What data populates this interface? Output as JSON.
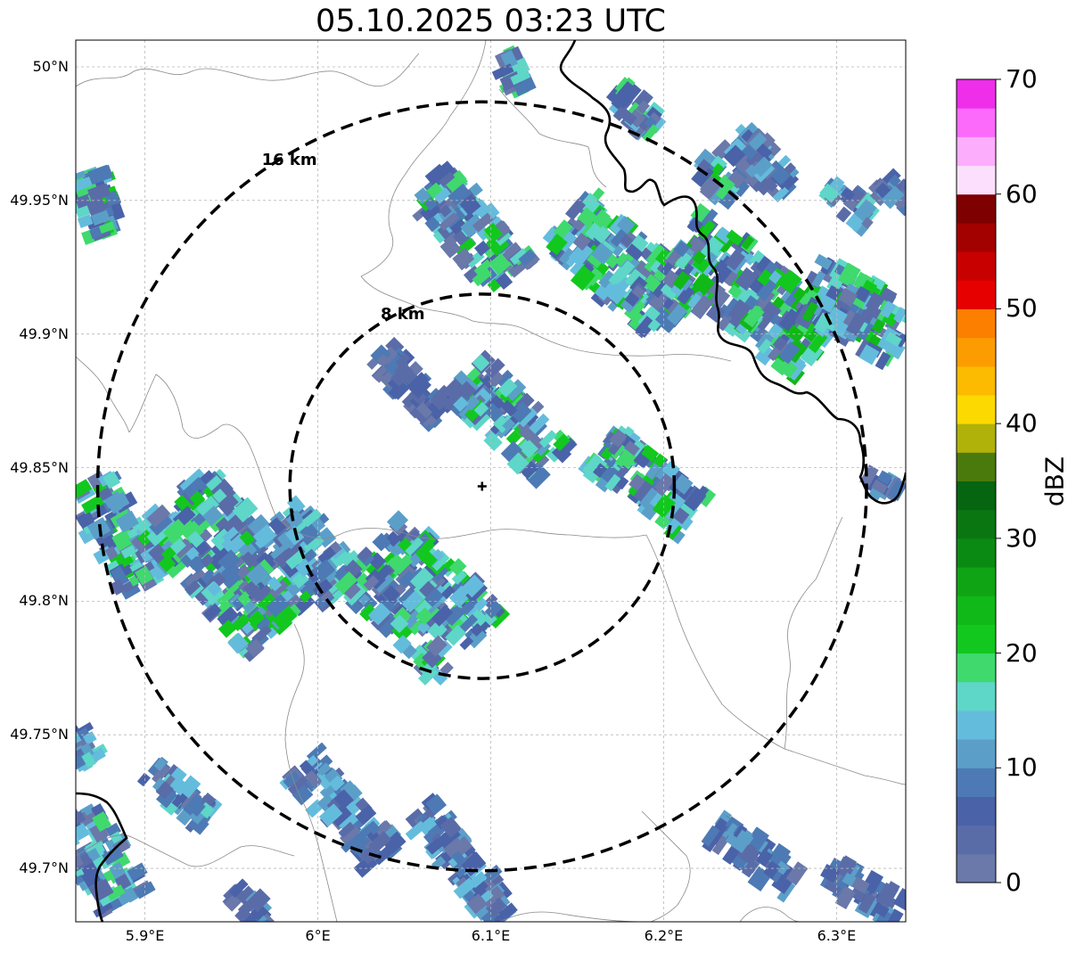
{
  "title": "05.10.2025 03:23 UTC",
  "map": {
    "lon_range": [
      5.86,
      6.34
    ],
    "lat_range": [
      49.68,
      50.01
    ],
    "lat_ticks": [
      {
        "value": 50.0,
        "label": "50°N"
      },
      {
        "value": 49.95,
        "label": "49.95°N"
      },
      {
        "value": 49.9,
        "label": "49.9°N"
      },
      {
        "value": 49.85,
        "label": "49.85°N"
      },
      {
        "value": 49.8,
        "label": "49.8°N"
      },
      {
        "value": 49.75,
        "label": "49.75°N"
      },
      {
        "value": 49.7,
        "label": "49.7°N"
      }
    ],
    "lon_ticks": [
      {
        "value": 5.9,
        "label": "5.9°E"
      },
      {
        "value": 6.0,
        "label": "6°E"
      },
      {
        "value": 6.1,
        "label": "6.1°E"
      },
      {
        "value": 6.2,
        "label": "6.2°E"
      },
      {
        "value": 6.3,
        "label": "6.3°E"
      }
    ],
    "radar_site": {
      "lon": 6.095,
      "lat": 49.843
    },
    "range_rings": [
      {
        "radius_km": 8,
        "label": "8 km"
      },
      {
        "radius_km": 16,
        "label": "16 km"
      }
    ],
    "grid": true
  },
  "colorbar": {
    "label": "dBZ",
    "range": [
      0,
      70
    ],
    "ticks": [
      "0",
      "10",
      "20",
      "30",
      "40",
      "50",
      "60",
      "70"
    ],
    "colors": [
      "#6a78aa",
      "#5a6ca8",
      "#4a62a8",
      "#4d7ab4",
      "#5b9fc9",
      "#64bcdc",
      "#5ed6c8",
      "#3fd96e",
      "#12c81e",
      "#10b818",
      "#0fa414",
      "#0b8a13",
      "#0a7612",
      "#066510",
      "#4a7a0c",
      "#b0b20a",
      "#fcd900",
      "#fcba00",
      "#fc9c00",
      "#fc7f00",
      "#e60000",
      "#c80000",
      "#a30000",
      "#7e0000",
      "#fcdffc",
      "#fcaefc",
      "#fc6afc",
      "#ee2ee8"
    ]
  }
}
